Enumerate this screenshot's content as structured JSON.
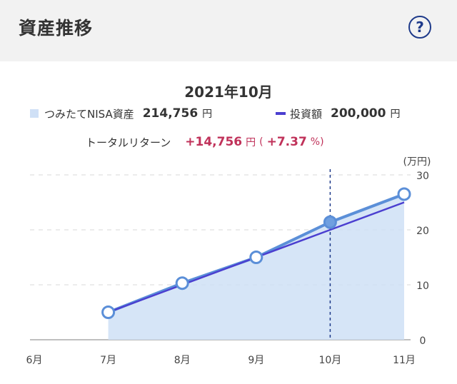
{
  "header": {
    "title": "資産推移",
    "help_icon": "question-circle-icon",
    "help_glyph": "?"
  },
  "summary": {
    "month": "2021年10月",
    "asset_label": "つみたてNISA資産",
    "asset_value": "214,756",
    "asset_unit": "円",
    "invest_label": "投資額",
    "invest_value": "200,000",
    "invest_unit": "円",
    "return_label": "トータルリターン",
    "return_value": "+14,756",
    "return_unit": "円",
    "return_paren_open": "(",
    "return_pct": "+7.37",
    "return_pct_unit": "%)"
  },
  "colors": {
    "asset_fill": "#cfe0f6",
    "asset_line": "#5b8fd8",
    "invest_line": "#4b3fd0",
    "return": "#c0325a",
    "help": "#1e3a8a"
  },
  "chart_data": {
    "type": "area",
    "unit_label": "(万円)",
    "categories": [
      "6月",
      "7月",
      "8月",
      "9月",
      "10月",
      "11月"
    ],
    "series": [
      {
        "name": "つみたてNISA資産",
        "values": [
          null,
          5.0,
          10.3,
          15.0,
          21.4,
          26.5
        ]
      },
      {
        "name": "投資額",
        "values": [
          null,
          5.0,
          10.0,
          15.0,
          20.0,
          25.0
        ]
      }
    ],
    "ylim": [
      0,
      30
    ],
    "yticks": [
      0,
      10,
      20,
      30
    ],
    "selected_category": "10月",
    "grid": true
  }
}
